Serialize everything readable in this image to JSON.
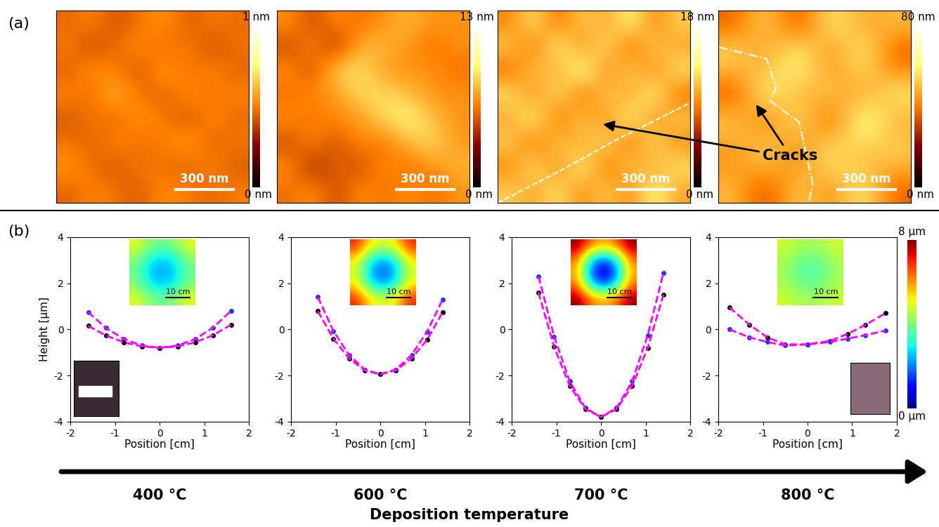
{
  "panel_labels": [
    "(a)",
    "(b)"
  ],
  "annotation": "Cracks",
  "temperature_arrow": {
    "label": "Deposition temperature",
    "categories": [
      "400 °C",
      "600 °C",
      "700 °C",
      "800 °C"
    ]
  },
  "wafer_colorbar": {
    "colorbar_range": [
      0,
      8
    ],
    "colorbar_ticks": [
      {
        "value": 0,
        "label": "0 µm"
      },
      {
        "value": 8,
        "label": "8 µm"
      }
    ]
  },
  "chart_data": [
    {
      "type": "heatmap",
      "tick_labels": false,
      "scale_bar": "300 nm",
      "colorbar_range": [
        0,
        1
      ],
      "colorbar_ticks": [
        {
          "value": 0,
          "label": "0 nm"
        },
        {
          "value": 1,
          "label": "1 nm"
        }
      ],
      "cells": [
        [
          0.45,
          0.52,
          0.4,
          0.48,
          0.55,
          0.42,
          0.5,
          0.46
        ],
        [
          0.5,
          0.38,
          0.47,
          0.53,
          0.44,
          0.51,
          0.39,
          0.48
        ],
        [
          0.43,
          0.55,
          0.49,
          0.41,
          0.58,
          0.46,
          0.52,
          0.44
        ],
        [
          0.52,
          0.45,
          0.62,
          0.47,
          0.43,
          0.54,
          0.47,
          0.51
        ],
        [
          0.41,
          0.5,
          0.44,
          0.56,
          0.49,
          0.4,
          0.53,
          0.45
        ],
        [
          0.48,
          0.43,
          0.53,
          0.45,
          0.51,
          0.57,
          0.44,
          0.49
        ],
        [
          0.55,
          0.47,
          0.41,
          0.5,
          0.46,
          0.43,
          0.52,
          0.42
        ],
        [
          0.44,
          0.51,
          0.48,
          0.42,
          0.54,
          0.49,
          0.45,
          0.5
        ]
      ]
    },
    {
      "type": "heatmap",
      "tick_labels": false,
      "scale_bar": "300 nm",
      "colorbar_range": [
        0,
        13
      ],
      "colorbar_ticks": [
        {
          "value": 0,
          "label": "0 nm"
        },
        {
          "value": 13,
          "label": "13 nm"
        }
      ],
      "cells": [
        [
          7,
          5,
          7,
          6,
          7,
          8,
          7,
          7
        ],
        [
          5,
          7,
          4,
          8,
          8,
          7,
          6,
          7
        ],
        [
          7,
          5,
          9,
          9,
          7,
          7,
          7,
          6
        ],
        [
          6,
          7,
          7,
          9,
          9,
          8,
          7,
          7
        ],
        [
          7,
          6,
          7,
          7,
          9,
          10,
          8,
          7
        ],
        [
          5,
          7,
          5,
          7,
          6,
          8,
          9,
          7
        ],
        [
          7,
          4,
          6,
          5,
          7,
          6,
          7,
          8
        ],
        [
          6,
          7,
          5,
          7,
          6,
          7,
          6,
          7
        ]
      ]
    },
    {
      "type": "heatmap",
      "tick_labels": false,
      "scale_bar": "300 nm",
      "colorbar_range": [
        0,
        18
      ],
      "colorbar_ticks": [
        {
          "value": 0,
          "label": "0 nm"
        },
        {
          "value": 18,
          "label": "18 nm"
        }
      ],
      "cells": [
        [
          9,
          13,
          8,
          12,
          10,
          14,
          9,
          12
        ],
        [
          12,
          8,
          14,
          9,
          13,
          8,
          12,
          10
        ],
        [
          8,
          12,
          10,
          15,
          9,
          12,
          9,
          13
        ],
        [
          13,
          9,
          13,
          8,
          12,
          10,
          14,
          8
        ],
        [
          10,
          14,
          8,
          12,
          9,
          14,
          9,
          12
        ],
        [
          12,
          8,
          12,
          10,
          13,
          8,
          13,
          9
        ],
        [
          9,
          13,
          9,
          14,
          8,
          12,
          10,
          13
        ],
        [
          12,
          10,
          13,
          9,
          12,
          9,
          14,
          10
        ]
      ]
    },
    {
      "type": "heatmap",
      "tick_labels": false,
      "scale_bar": "300 nm",
      "colorbar_range": [
        0,
        80
      ],
      "colorbar_ticks": [
        {
          "value": 0,
          "label": "0 nm"
        },
        {
          "value": 80,
          "label": "80 nm"
        }
      ],
      "cells": [
        [
          35,
          55,
          30,
          60,
          45,
          50
        ],
        [
          60,
          40,
          70,
          35,
          65,
          30
        ],
        [
          30,
          65,
          45,
          55,
          40,
          60
        ],
        [
          55,
          35,
          60,
          30,
          70,
          45
        ],
        [
          40,
          60,
          35,
          65,
          45,
          55
        ],
        [
          50,
          30,
          55,
          40,
          60,
          35
        ]
      ]
    },
    {
      "type": "line",
      "xlabel": "Position [cm]",
      "ylabel": "Height [µm]",
      "xlim": [
        -2,
        2
      ],
      "xticks": [
        -2,
        -1,
        0,
        1,
        2
      ],
      "ylim": [
        -4,
        4
      ],
      "yticks": [
        -4,
        -2,
        0,
        2,
        4
      ],
      "x": [
        -1.6,
        -1.2,
        -0.8,
        -0.4,
        0,
        0.4,
        0.8,
        1.2,
        1.6
      ],
      "series": [
        {
          "color": "#2233ff",
          "marker": "o",
          "line_style": "none",
          "values": [
            0.74,
            0.06,
            -0.42,
            -0.7,
            -0.8,
            -0.7,
            -0.42,
            0.08,
            0.8
          ]
        },
        {
          "color": "#000000",
          "marker": "o",
          "line_style": "none",
          "values": [
            0.15,
            -0.27,
            -0.56,
            -0.74,
            -0.8,
            -0.74,
            -0.56,
            -0.25,
            0.2
          ]
        },
        {
          "color": "#ff00ff",
          "line_style": "dashed",
          "values": [
            0.74,
            0.06,
            -0.42,
            -0.7,
            -0.8,
            -0.7,
            -0.42,
            0.08,
            0.8
          ]
        },
        {
          "color": "#ff00ff",
          "line_style": "dashed",
          "values": [
            0.15,
            -0.27,
            -0.56,
            -0.74,
            -0.8,
            -0.74,
            -0.56,
            -0.25,
            0.2
          ]
        }
      ],
      "inset": {
        "scale_bar": "10 cm",
        "cells": [
          [
            5.0,
            4.2,
            3.8,
            4.2,
            5.0
          ],
          [
            4.2,
            3.0,
            2.6,
            3.0,
            4.2
          ],
          [
            3.8,
            2.6,
            2.2,
            2.6,
            3.8
          ],
          [
            4.2,
            3.0,
            2.6,
            3.0,
            4.2
          ],
          [
            5.0,
            4.2,
            3.8,
            4.2,
            5.0
          ]
        ]
      }
    },
    {
      "type": "line",
      "xlabel": "Position [cm]",
      "xlim": [
        -2,
        2
      ],
      "xticks": [
        -2,
        -1,
        0,
        1,
        2
      ],
      "ylim": [
        -4,
        4
      ],
      "yticks": [
        -4,
        -2,
        0,
        2,
        4
      ],
      "x": [
        -1.4,
        -1.05,
        -0.7,
        -0.35,
        0,
        0.35,
        0.7,
        1.05,
        1.4
      ],
      "series": [
        {
          "color": "#2233ff",
          "marker": "o",
          "line_style": "none",
          "values": [
            1.4,
            -0.07,
            -1.11,
            -1.74,
            -1.95,
            -1.74,
            -1.11,
            -0.1,
            1.3
          ]
        },
        {
          "color": "#000000",
          "marker": "o",
          "line_style": "none",
          "values": [
            0.79,
            -0.41,
            -1.26,
            -1.78,
            -1.95,
            -1.78,
            -1.26,
            -0.45,
            0.75
          ]
        },
        {
          "color": "#ff00ff",
          "line_style": "dashed",
          "values": [
            1.4,
            -0.07,
            -1.11,
            -1.74,
            -1.95,
            -1.74,
            -1.11,
            -0.1,
            1.3
          ]
        },
        {
          "color": "#ff00ff",
          "line_style": "dashed",
          "values": [
            0.79,
            -0.41,
            -1.26,
            -1.78,
            -1.95,
            -1.78,
            -1.26,
            -0.45,
            0.75
          ]
        }
      ],
      "inset": {
        "scale_bar": "10 cm",
        "cells": [
          [
            7.0,
            5.4,
            4.8,
            5.4,
            7.0
          ],
          [
            5.4,
            3.2,
            2.4,
            3.2,
            5.4
          ],
          [
            4.8,
            2.4,
            1.5,
            2.4,
            4.8
          ],
          [
            5.4,
            3.2,
            2.4,
            3.2,
            5.4
          ],
          [
            7.0,
            5.4,
            4.8,
            5.4,
            7.0
          ]
        ]
      }
    },
    {
      "type": "line",
      "xlabel": "Position [cm]",
      "xlim": [
        -2,
        2
      ],
      "xticks": [
        -2,
        -1,
        0,
        1,
        2
      ],
      "ylim": [
        -4,
        4
      ],
      "yticks": [
        -4,
        -2,
        0,
        2,
        4
      ],
      "x": [
        -1.4,
        -1.05,
        -0.7,
        -0.35,
        0,
        0.35,
        0.7,
        1.05,
        1.4
      ],
      "series": [
        {
          "color": "#2233ff",
          "marker": "o",
          "line_style": "none",
          "values": [
            2.3,
            -0.31,
            -2.25,
            -3.41,
            -3.8,
            -3.41,
            -2.25,
            -0.25,
            2.45
          ]
        },
        {
          "color": "#000000",
          "marker": "o",
          "line_style": "none",
          "values": [
            1.6,
            -0.76,
            -2.45,
            -3.46,
            -3.8,
            -3.46,
            -2.45,
            -0.8,
            1.5
          ]
        },
        {
          "color": "#ff00ff",
          "line_style": "dashed",
          "values": [
            2.3,
            -0.31,
            -2.25,
            -3.41,
            -3.8,
            -3.41,
            -2.25,
            -0.25,
            2.45
          ]
        },
        {
          "color": "#ff00ff",
          "line_style": "dashed",
          "values": [
            1.6,
            -0.76,
            -2.45,
            -3.46,
            -3.8,
            -3.46,
            -2.45,
            -0.8,
            1.5
          ]
        }
      ],
      "inset": {
        "scale_bar": "10 cm",
        "cells": [
          [
            8.0,
            6.4,
            5.8,
            6.4,
            8.0
          ],
          [
            6.4,
            3.0,
            1.8,
            3.0,
            6.4
          ],
          [
            5.8,
            1.8,
            0.2,
            1.8,
            5.8
          ],
          [
            6.4,
            3.0,
            1.8,
            3.0,
            6.4
          ],
          [
            8.0,
            6.4,
            5.8,
            6.4,
            8.0
          ]
        ]
      }
    },
    {
      "type": "line",
      "xlabel": "Position [cm]",
      "xlim": [
        -2,
        2
      ],
      "xticks": [
        -2,
        -1,
        0,
        1,
        2
      ],
      "ylim": [
        -4,
        4
      ],
      "yticks": [
        -4,
        -2,
        0,
        2,
        4
      ],
      "x": [
        -1.75,
        -1.3,
        -0.9,
        -0.5,
        0,
        0.5,
        0.9,
        1.3,
        1.75
      ],
      "series": [
        {
          "color": "#000000",
          "marker": "o",
          "line_style": "none",
          "values": [
            0.95,
            0.2,
            -0.35,
            -0.65,
            -0.65,
            -0.5,
            -0.2,
            0.2,
            0.7
          ]
        },
        {
          "color": "#2233ff",
          "marker": "o",
          "line_style": "none",
          "values": [
            0.0,
            -0.35,
            -0.55,
            -0.7,
            -0.65,
            -0.55,
            -0.4,
            -0.25,
            -0.05
          ]
        },
        {
          "color": "#ff00ff",
          "line_style": "dashed",
          "values": [
            0.95,
            0.2,
            -0.35,
            -0.65,
            -0.65,
            -0.5,
            -0.2,
            0.2,
            0.7
          ]
        },
        {
          "color": "#ff00ff",
          "line_style": "dashed",
          "values": [
            0.0,
            -0.35,
            -0.55,
            -0.7,
            -0.65,
            -0.55,
            -0.4,
            -0.25,
            -0.05
          ]
        }
      ],
      "inset": {
        "scale_bar": "10 cm",
        "cells": [
          [
            4.8,
            4.5,
            4.4,
            4.5,
            4.8
          ],
          [
            4.5,
            4.0,
            3.8,
            4.0,
            4.5
          ],
          [
            4.4,
            3.8,
            3.5,
            3.8,
            4.4
          ],
          [
            4.5,
            4.0,
            3.8,
            4.0,
            4.5
          ],
          [
            4.8,
            4.5,
            4.4,
            4.5,
            4.8
          ]
        ]
      }
    }
  ]
}
